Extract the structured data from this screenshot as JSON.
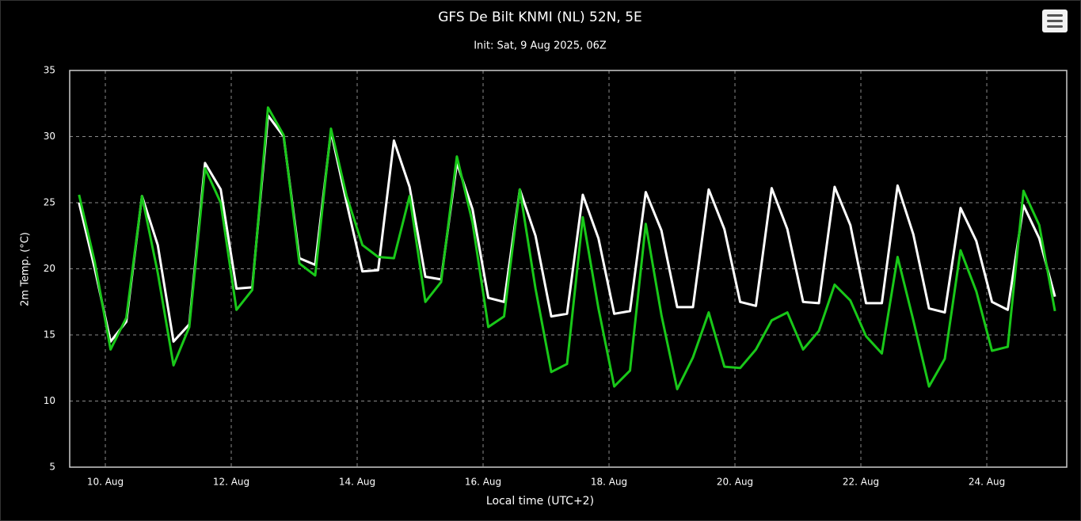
{
  "chart_data": {
    "type": "line",
    "title": "GFS De Bilt KNMI (NL) 52N, 5E",
    "subtitle": "Init: Sat, 9 Aug 2025, 06Z",
    "y_label": "2m Temp. (°C)",
    "x_label": "Local time (UTC+2)",
    "x": [
      9.583,
      9.833,
      10.083,
      10.333,
      10.583,
      10.833,
      11.083,
      11.333,
      11.583,
      11.833,
      12.083,
      12.333,
      12.583,
      12.833,
      13.083,
      13.333,
      13.583,
      13.833,
      14.083,
      14.333,
      14.583,
      14.833,
      15.083,
      15.333,
      15.583,
      15.833,
      16.083,
      16.333,
      16.583,
      16.833,
      17.083,
      17.333,
      17.583,
      17.833,
      18.083,
      18.333,
      18.583,
      18.833,
      19.083,
      19.333,
      19.583,
      19.833,
      20.083,
      20.333,
      20.583,
      20.833,
      21.083,
      21.333,
      21.583,
      21.833,
      22.083,
      22.333,
      22.583,
      22.833,
      23.083,
      23.333,
      23.583,
      23.833,
      24.083,
      24.333,
      24.583,
      24.833,
      25.083
    ],
    "series": [
      {
        "color": "#ffffff",
        "values": [
          25,
          20,
          14.5,
          16,
          25.5,
          21.8,
          14.5,
          15.8,
          28,
          26,
          18.5,
          18.6,
          31.6,
          30,
          20.8,
          20.3,
          30.4,
          25,
          19.8,
          19.9,
          29.7,
          26.2,
          19.4,
          19.2,
          28,
          24.5,
          17.8,
          17.5,
          26,
          22.5,
          16.4,
          16.6,
          25.6,
          22.3,
          16.6,
          16.8,
          25.8,
          22.9,
          17.1,
          17.1,
          26,
          23,
          17.5,
          17.2,
          26.1,
          23,
          17.5,
          17.4,
          26.2,
          23.3,
          17.4,
          17.4,
          26.3,
          22.6,
          17,
          16.7,
          24.6,
          22.1,
          17.5,
          16.9,
          24.8,
          22.3,
          17.9
        ]
      },
      {
        "color": "#19c819",
        "values": [
          25.6,
          20.5,
          13.9,
          16.3,
          25.5,
          19.7,
          12.7,
          15.6,
          27.6,
          25,
          16.9,
          18.4,
          32.2,
          30.1,
          20.4,
          19.5,
          30.6,
          25.5,
          21.8,
          20.9,
          20.8,
          25.5,
          17.5,
          19,
          28.5,
          23.5,
          15.6,
          16.4,
          26,
          18.5,
          12.2,
          12.8,
          23.9,
          17,
          11.1,
          12.3,
          23.4,
          16.5,
          10.9,
          13.3,
          16.7,
          12.6,
          12.5,
          13.9,
          16.1,
          16.7,
          13.9,
          15.3,
          18.8,
          17.6,
          14.9,
          13.6,
          20.9,
          16.1,
          11.1,
          13.2,
          21.4,
          18.3,
          13.8,
          14.1,
          25.9,
          23.3,
          16.8
        ]
      }
    ],
    "xlim": [
      9.434,
      25.27
    ],
    "xticks": [
      {
        "value": 10,
        "label": "10. Aug"
      },
      {
        "value": 12,
        "label": "12. Aug"
      },
      {
        "value": 14,
        "label": "14. Aug"
      },
      {
        "value": 16,
        "label": "16. Aug"
      },
      {
        "value": 18,
        "label": "18. Aug"
      },
      {
        "value": 20,
        "label": "20. Aug"
      },
      {
        "value": 22,
        "label": "22. Aug"
      },
      {
        "value": 24,
        "label": "24. Aug"
      }
    ],
    "ylim": [
      5,
      35
    ],
    "yticks": [
      5,
      10,
      15,
      20,
      25,
      30,
      35
    ],
    "grid": true
  }
}
